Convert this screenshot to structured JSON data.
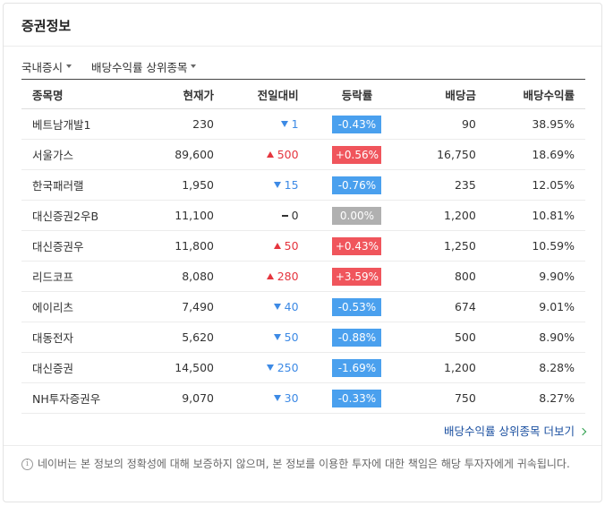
{
  "header": {
    "title": "증권정보"
  },
  "tabs": [
    "국내증시",
    "배당수익률 상위종목"
  ],
  "table": {
    "columns": [
      "종목명",
      "현재가",
      "전일대비",
      "등락률",
      "배당금",
      "배당수익률"
    ],
    "rows": [
      {
        "name": "베트남개발1",
        "price": "230",
        "direction": "down",
        "change": "1",
        "rate": "-0.43%",
        "dividend": "90",
        "yield": "38.95%"
      },
      {
        "name": "서울가스",
        "price": "89,600",
        "direction": "up",
        "change": "500",
        "rate": "+0.56%",
        "dividend": "16,750",
        "yield": "18.69%"
      },
      {
        "name": "한국패러랠",
        "price": "1,950",
        "direction": "down",
        "change": "15",
        "rate": "-0.76%",
        "dividend": "235",
        "yield": "12.05%"
      },
      {
        "name": "대신증권2우B",
        "price": "11,100",
        "direction": "flat",
        "change": "0",
        "rate": "0.00%",
        "dividend": "1,200",
        "yield": "10.81%"
      },
      {
        "name": "대신증권우",
        "price": "11,800",
        "direction": "up",
        "change": "50",
        "rate": "+0.43%",
        "dividend": "1,250",
        "yield": "10.59%"
      },
      {
        "name": "리드코프",
        "price": "8,080",
        "direction": "up",
        "change": "280",
        "rate": "+3.59%",
        "dividend": "800",
        "yield": "9.90%"
      },
      {
        "name": "에이리츠",
        "price": "7,490",
        "direction": "down",
        "change": "40",
        "rate": "-0.53%",
        "dividend": "674",
        "yield": "9.01%"
      },
      {
        "name": "대동전자",
        "price": "5,620",
        "direction": "down",
        "change": "50",
        "rate": "-0.88%",
        "dividend": "500",
        "yield": "8.90%"
      },
      {
        "name": "대신증권",
        "price": "14,500",
        "direction": "down",
        "change": "250",
        "rate": "-1.69%",
        "dividend": "1,200",
        "yield": "8.28%"
      },
      {
        "name": "NH투자증권우",
        "price": "9,070",
        "direction": "down",
        "change": "30",
        "rate": "-0.33%",
        "dividend": "750",
        "yield": "8.27%"
      }
    ]
  },
  "more_link": "배당수익률 상위종목 더보기",
  "notice": "네이버는 본 정보의 정확성에 대해 보증하지 않으며, 본 정보를 이용한 투자에 대한 책임은 해당 투자자에게 귀속됩니다."
}
